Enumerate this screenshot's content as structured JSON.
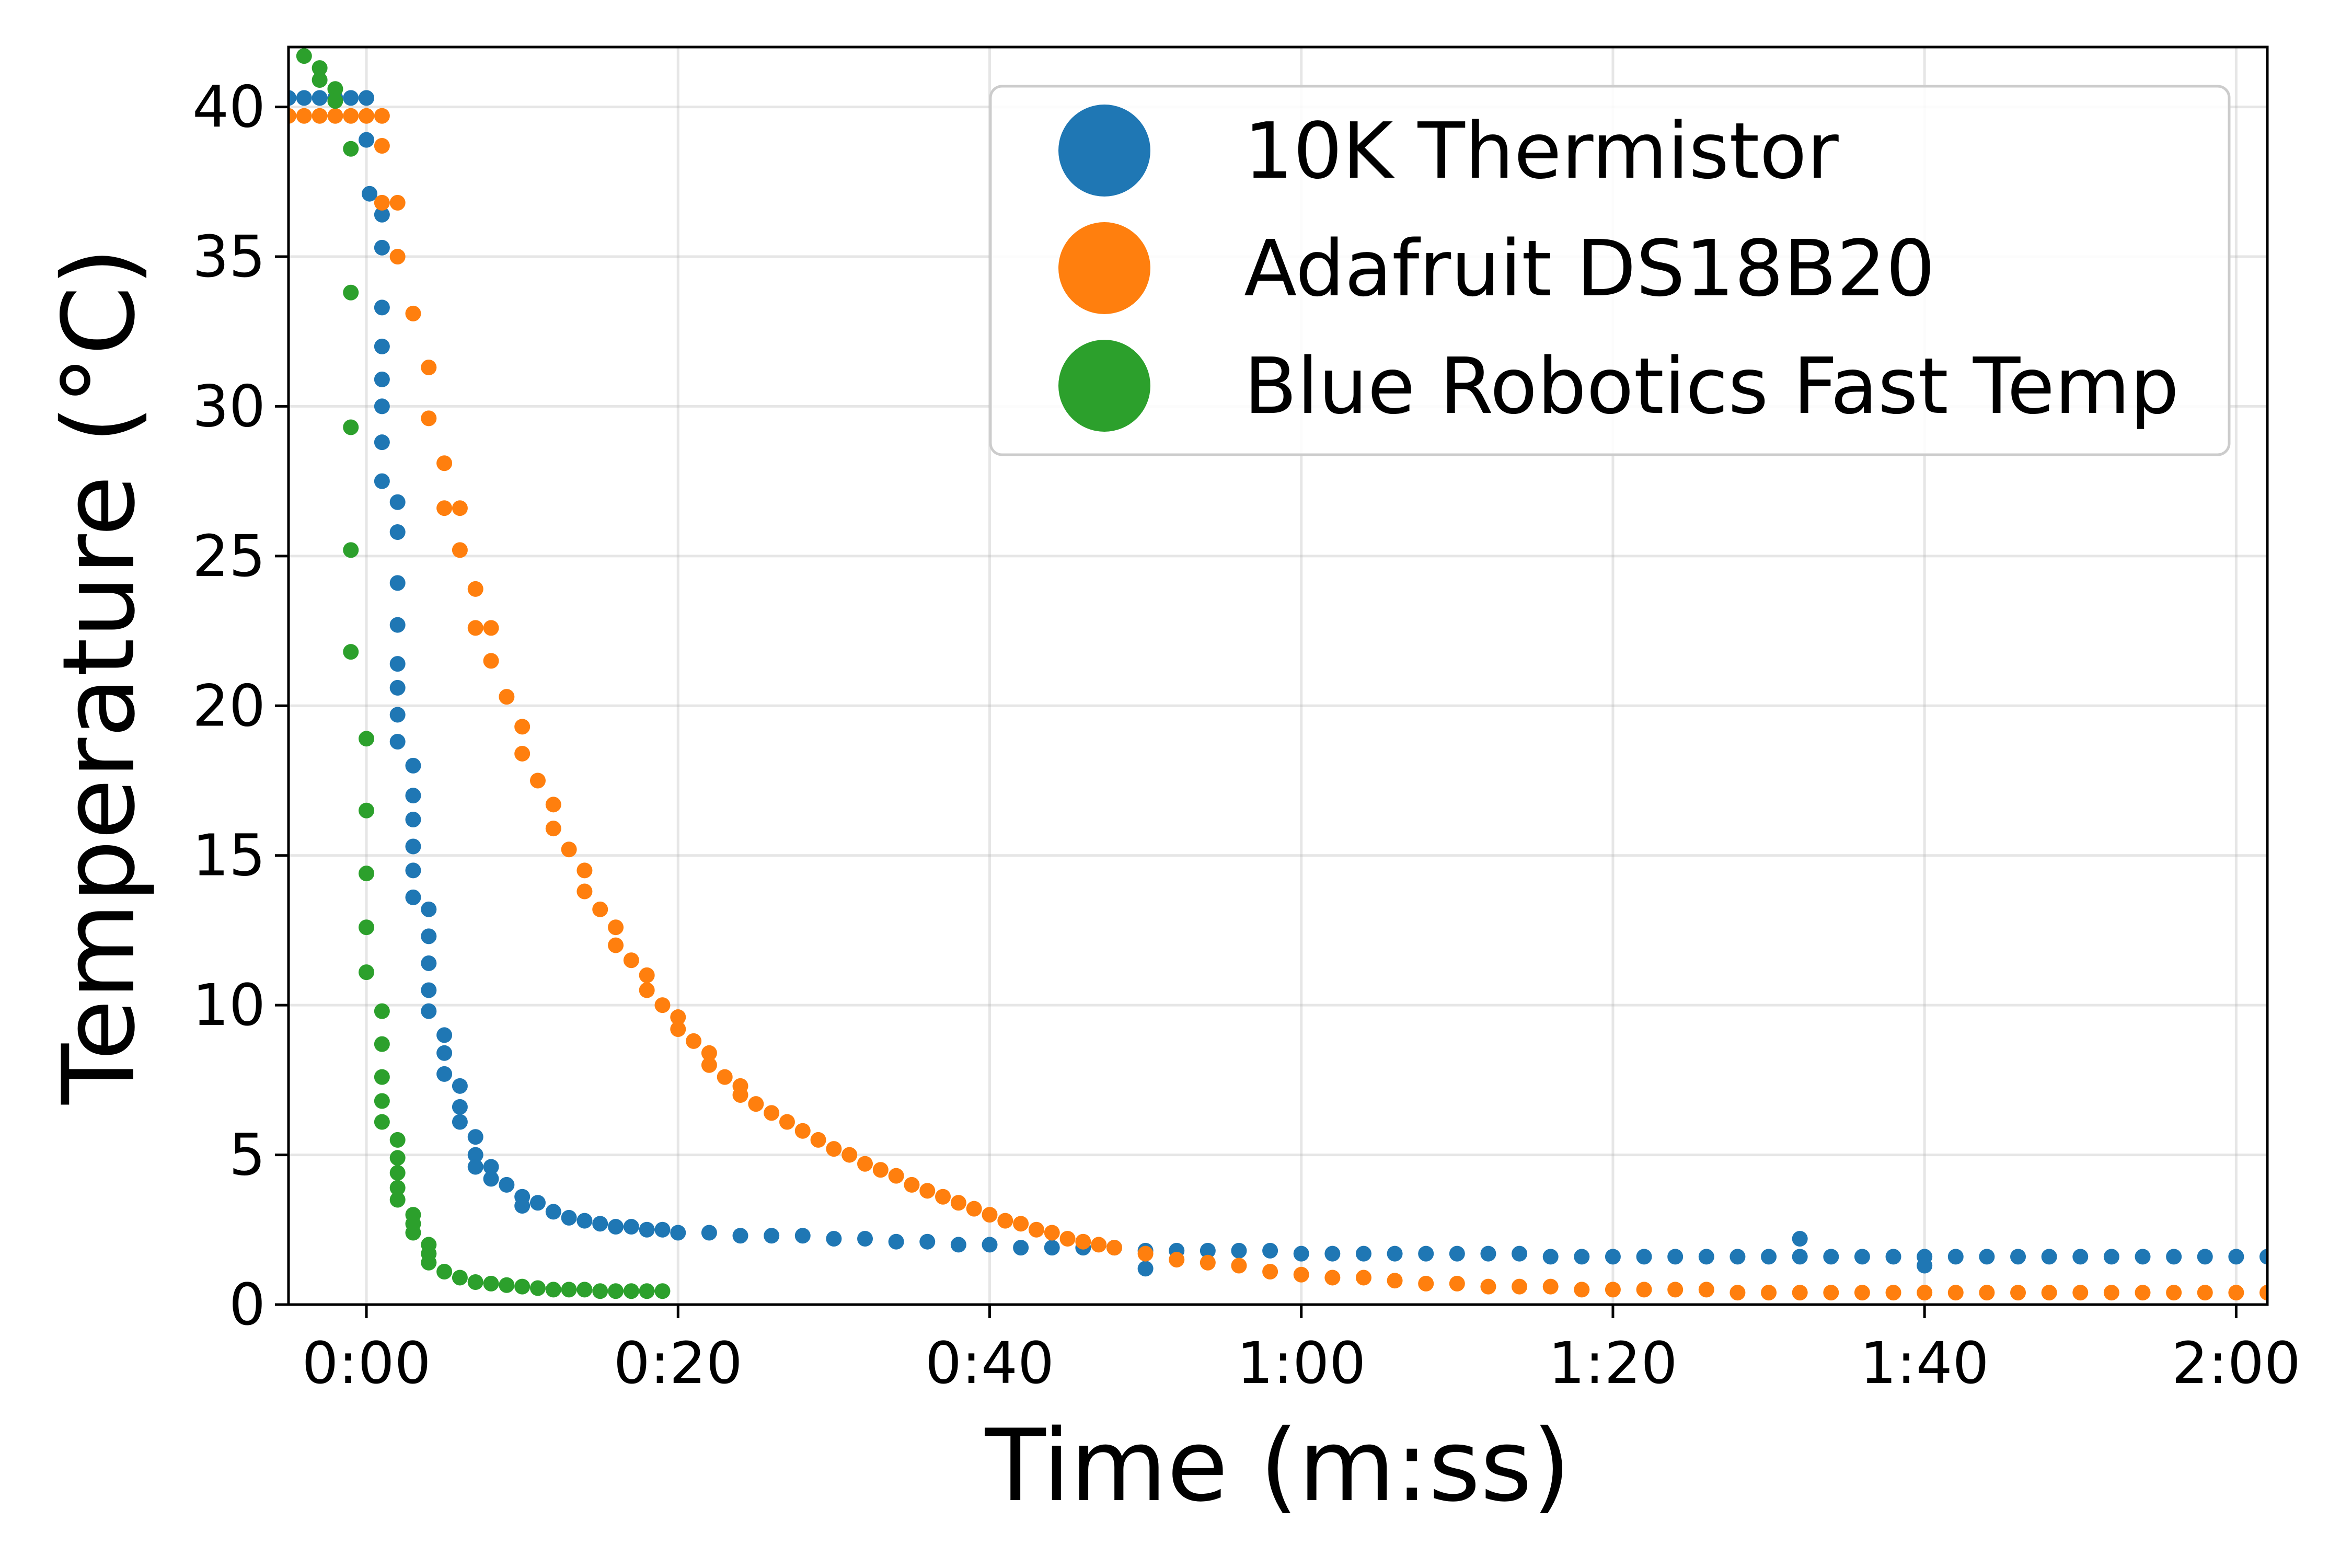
{
  "chart_data": {
    "type": "scatter",
    "title": "",
    "xlabel": "Time (m:ss)",
    "ylabel": "Temperature (°C)",
    "x_unit": "seconds",
    "xlim": [
      -5,
      122
    ],
    "ylim": [
      0,
      42
    ],
    "x_ticks": [
      0,
      20,
      40,
      60,
      80,
      100,
      120
    ],
    "x_tick_labels": [
      "0:00",
      "0:20",
      "0:40",
      "1:00",
      "1:20",
      "1:40",
      "2:00"
    ],
    "y_ticks": [
      0,
      5,
      10,
      15,
      20,
      25,
      30,
      35,
      40
    ],
    "y_tick_labels": [
      "0",
      "5",
      "10",
      "15",
      "20",
      "25",
      "30",
      "35",
      "40"
    ],
    "grid": true,
    "legend_position": "top-right",
    "series": [
      {
        "name": "10K Thermistor",
        "color": "#1f77b4",
        "points": [
          [
            -5,
            40.3
          ],
          [
            -4,
            40.3
          ],
          [
            -3,
            40.3
          ],
          [
            -2,
            40.3
          ],
          [
            -1,
            40.3
          ],
          [
            0,
            40.3
          ],
          [
            0,
            38.9
          ],
          [
            0.2,
            37.1
          ],
          [
            1,
            36.4
          ],
          [
            1,
            35.3
          ],
          [
            1,
            33.3
          ],
          [
            1,
            32
          ],
          [
            1,
            30.9
          ],
          [
            1,
            30
          ],
          [
            1,
            28.8
          ],
          [
            1,
            27.5
          ],
          [
            2,
            26.8
          ],
          [
            2,
            25.8
          ],
          [
            2,
            24.1
          ],
          [
            2,
            22.7
          ],
          [
            2,
            21.4
          ],
          [
            2,
            20.6
          ],
          [
            2,
            19.7
          ],
          [
            2,
            18.8
          ],
          [
            3,
            18.0
          ],
          [
            3,
            17.0
          ],
          [
            3,
            16.2
          ],
          [
            3,
            15.3
          ],
          [
            3,
            14.5
          ],
          [
            3,
            13.6
          ],
          [
            4,
            13.2
          ],
          [
            4,
            12.3
          ],
          [
            4,
            11.4
          ],
          [
            4,
            10.5
          ],
          [
            4,
            9.8
          ],
          [
            5,
            9.0
          ],
          [
            5,
            8.4
          ],
          [
            5,
            7.7
          ],
          [
            6,
            7.3
          ],
          [
            6,
            6.6
          ],
          [
            6,
            6.1
          ],
          [
            7,
            5.6
          ],
          [
            7,
            5.0
          ],
          [
            7,
            4.6
          ],
          [
            8,
            4.2
          ],
          [
            8,
            4.6
          ],
          [
            9,
            4.0
          ],
          [
            10,
            3.6
          ],
          [
            10,
            3.3
          ],
          [
            11,
            3.4
          ],
          [
            12,
            3.1
          ],
          [
            13,
            2.9
          ],
          [
            14,
            2.8
          ],
          [
            15,
            2.7
          ],
          [
            16,
            2.6
          ],
          [
            17,
            2.6
          ],
          [
            18,
            2.5
          ],
          [
            19,
            2.5
          ],
          [
            20,
            2.4
          ],
          [
            22,
            2.4
          ],
          [
            24,
            2.3
          ],
          [
            26,
            2.3
          ],
          [
            28,
            2.3
          ],
          [
            30,
            2.2
          ],
          [
            32,
            2.2
          ],
          [
            34,
            2.1
          ],
          [
            36,
            2.1
          ],
          [
            38,
            2.0
          ],
          [
            40,
            2.0
          ],
          [
            42,
            1.9
          ],
          [
            44,
            1.9
          ],
          [
            46,
            1.9
          ],
          [
            48,
            1.9
          ],
          [
            50,
            1.8
          ],
          [
            50,
            1.2
          ],
          [
            52,
            1.8
          ],
          [
            54,
            1.8
          ],
          [
            56,
            1.8
          ],
          [
            58,
            1.8
          ],
          [
            60,
            1.7
          ],
          [
            62,
            1.7
          ],
          [
            64,
            1.7
          ],
          [
            66,
            1.7
          ],
          [
            68,
            1.7
          ],
          [
            70,
            1.7
          ],
          [
            72,
            1.7
          ],
          [
            74,
            1.7
          ],
          [
            76,
            1.6
          ],
          [
            78,
            1.6
          ],
          [
            80,
            1.6
          ],
          [
            82,
            1.6
          ],
          [
            84,
            1.6
          ],
          [
            86,
            1.6
          ],
          [
            88,
            1.6
          ],
          [
            90,
            1.6
          ],
          [
            92,
            1.6
          ],
          [
            92,
            2.2
          ],
          [
            94,
            1.6
          ],
          [
            96,
            1.6
          ],
          [
            98,
            1.6
          ],
          [
            100,
            1.6
          ],
          [
            100,
            1.3
          ],
          [
            102,
            1.6
          ],
          [
            104,
            1.6
          ],
          [
            106,
            1.6
          ],
          [
            108,
            1.6
          ],
          [
            110,
            1.6
          ],
          [
            112,
            1.6
          ],
          [
            114,
            1.6
          ],
          [
            116,
            1.6
          ],
          [
            118,
            1.6
          ],
          [
            120,
            1.6
          ],
          [
            122,
            1.6
          ]
        ]
      },
      {
        "name": "Adafruit DS18B20",
        "color": "#ff7f0e",
        "points": [
          [
            -5,
            39.7
          ],
          [
            -4,
            39.7
          ],
          [
            -3,
            39.7
          ],
          [
            -2,
            39.7
          ],
          [
            -1,
            39.7
          ],
          [
            0,
            39.7
          ],
          [
            1,
            39.7
          ],
          [
            1,
            38.7
          ],
          [
            1,
            36.8
          ],
          [
            2,
            36.8
          ],
          [
            2,
            35.0
          ],
          [
            3,
            33.1
          ],
          [
            4,
            31.3
          ],
          [
            4,
            29.6
          ],
          [
            5,
            28.1
          ],
          [
            5,
            26.6
          ],
          [
            6,
            26.6
          ],
          [
            6,
            25.2
          ],
          [
            7,
            23.9
          ],
          [
            7,
            22.6
          ],
          [
            8,
            22.6
          ],
          [
            8,
            21.5
          ],
          [
            9,
            20.3
          ],
          [
            10,
            19.3
          ],
          [
            10,
            18.4
          ],
          [
            11,
            17.5
          ],
          [
            12,
            16.7
          ],
          [
            12,
            15.9
          ],
          [
            13,
            15.2
          ],
          [
            14,
            14.5
          ],
          [
            14,
            13.8
          ],
          [
            15,
            13.2
          ],
          [
            16,
            12.6
          ],
          [
            16,
            12.0
          ],
          [
            17,
            11.5
          ],
          [
            18,
            11.0
          ],
          [
            18,
            10.5
          ],
          [
            19,
            10.0
          ],
          [
            20,
            9.6
          ],
          [
            20,
            9.2
          ],
          [
            21,
            8.8
          ],
          [
            22,
            8.4
          ],
          [
            22,
            8.0
          ],
          [
            23,
            7.6
          ],
          [
            24,
            7.3
          ],
          [
            24,
            7.0
          ],
          [
            25,
            6.7
          ],
          [
            26,
            6.4
          ],
          [
            27,
            6.1
          ],
          [
            28,
            5.8
          ],
          [
            29,
            5.5
          ],
          [
            30,
            5.2
          ],
          [
            31,
            5.0
          ],
          [
            32,
            4.7
          ],
          [
            33,
            4.5
          ],
          [
            34,
            4.3
          ],
          [
            35,
            4.0
          ],
          [
            36,
            3.8
          ],
          [
            37,
            3.6
          ],
          [
            38,
            3.4
          ],
          [
            39,
            3.2
          ],
          [
            40,
            3.0
          ],
          [
            41,
            2.8
          ],
          [
            42,
            2.7
          ],
          [
            43,
            2.5
          ],
          [
            44,
            2.4
          ],
          [
            45,
            2.2
          ],
          [
            46,
            2.1
          ],
          [
            47,
            2.0
          ],
          [
            48,
            1.9
          ],
          [
            50,
            1.7
          ],
          [
            52,
            1.5
          ],
          [
            54,
            1.4
          ],
          [
            56,
            1.3
          ],
          [
            58,
            1.1
          ],
          [
            60,
            1.0
          ],
          [
            62,
            0.9
          ],
          [
            64,
            0.9
          ],
          [
            66,
            0.8
          ],
          [
            68,
            0.7
          ],
          [
            70,
            0.7
          ],
          [
            72,
            0.6
          ],
          [
            74,
            0.6
          ],
          [
            76,
            0.6
          ],
          [
            78,
            0.5
          ],
          [
            80,
            0.5
          ],
          [
            82,
            0.5
          ],
          [
            84,
            0.5
          ],
          [
            86,
            0.5
          ],
          [
            88,
            0.4
          ],
          [
            90,
            0.4
          ],
          [
            92,
            0.4
          ],
          [
            94,
            0.4
          ],
          [
            96,
            0.4
          ],
          [
            98,
            0.4
          ],
          [
            100,
            0.4
          ],
          [
            102,
            0.4
          ],
          [
            104,
            0.4
          ],
          [
            106,
            0.4
          ],
          [
            108,
            0.4
          ],
          [
            110,
            0.4
          ],
          [
            112,
            0.4
          ],
          [
            114,
            0.4
          ],
          [
            116,
            0.4
          ],
          [
            118,
            0.4
          ],
          [
            120,
            0.4
          ],
          [
            122,
            0.4
          ]
        ]
      },
      {
        "name": "Blue Robotics Fast Temp",
        "color": "#2ca02c",
        "points": [
          [
            -4,
            41.7
          ],
          [
            -3,
            41.3
          ],
          [
            -3,
            40.9
          ],
          [
            -2,
            40.6
          ],
          [
            -2,
            40.2
          ],
          [
            -1,
            38.6
          ],
          [
            -1,
            33.8
          ],
          [
            -1,
            29.3
          ],
          [
            -1,
            25.2
          ],
          [
            -1,
            21.8
          ],
          [
            0,
            18.9
          ],
          [
            0,
            16.5
          ],
          [
            0,
            14.4
          ],
          [
            0,
            12.6
          ],
          [
            0,
            11.1
          ],
          [
            1,
            9.8
          ],
          [
            1,
            8.7
          ],
          [
            1,
            7.6
          ],
          [
            1,
            6.8
          ],
          [
            1,
            6.1
          ],
          [
            2,
            5.5
          ],
          [
            2,
            4.9
          ],
          [
            2,
            4.4
          ],
          [
            2,
            3.9
          ],
          [
            2,
            3.5
          ],
          [
            3,
            3.0
          ],
          [
            3,
            2.7
          ],
          [
            3,
            2.4
          ],
          [
            4,
            2.0
          ],
          [
            4,
            1.7
          ],
          [
            4,
            1.4
          ],
          [
            5,
            1.1
          ],
          [
            6,
            0.9
          ],
          [
            7,
            0.75
          ],
          [
            8,
            0.7
          ],
          [
            9,
            0.65
          ],
          [
            10,
            0.6
          ],
          [
            11,
            0.55
          ],
          [
            12,
            0.5
          ],
          [
            13,
            0.5
          ],
          [
            14,
            0.5
          ],
          [
            15,
            0.45
          ],
          [
            16,
            0.45
          ],
          [
            17,
            0.45
          ],
          [
            18,
            0.45
          ],
          [
            19,
            0.45
          ]
        ]
      }
    ]
  }
}
